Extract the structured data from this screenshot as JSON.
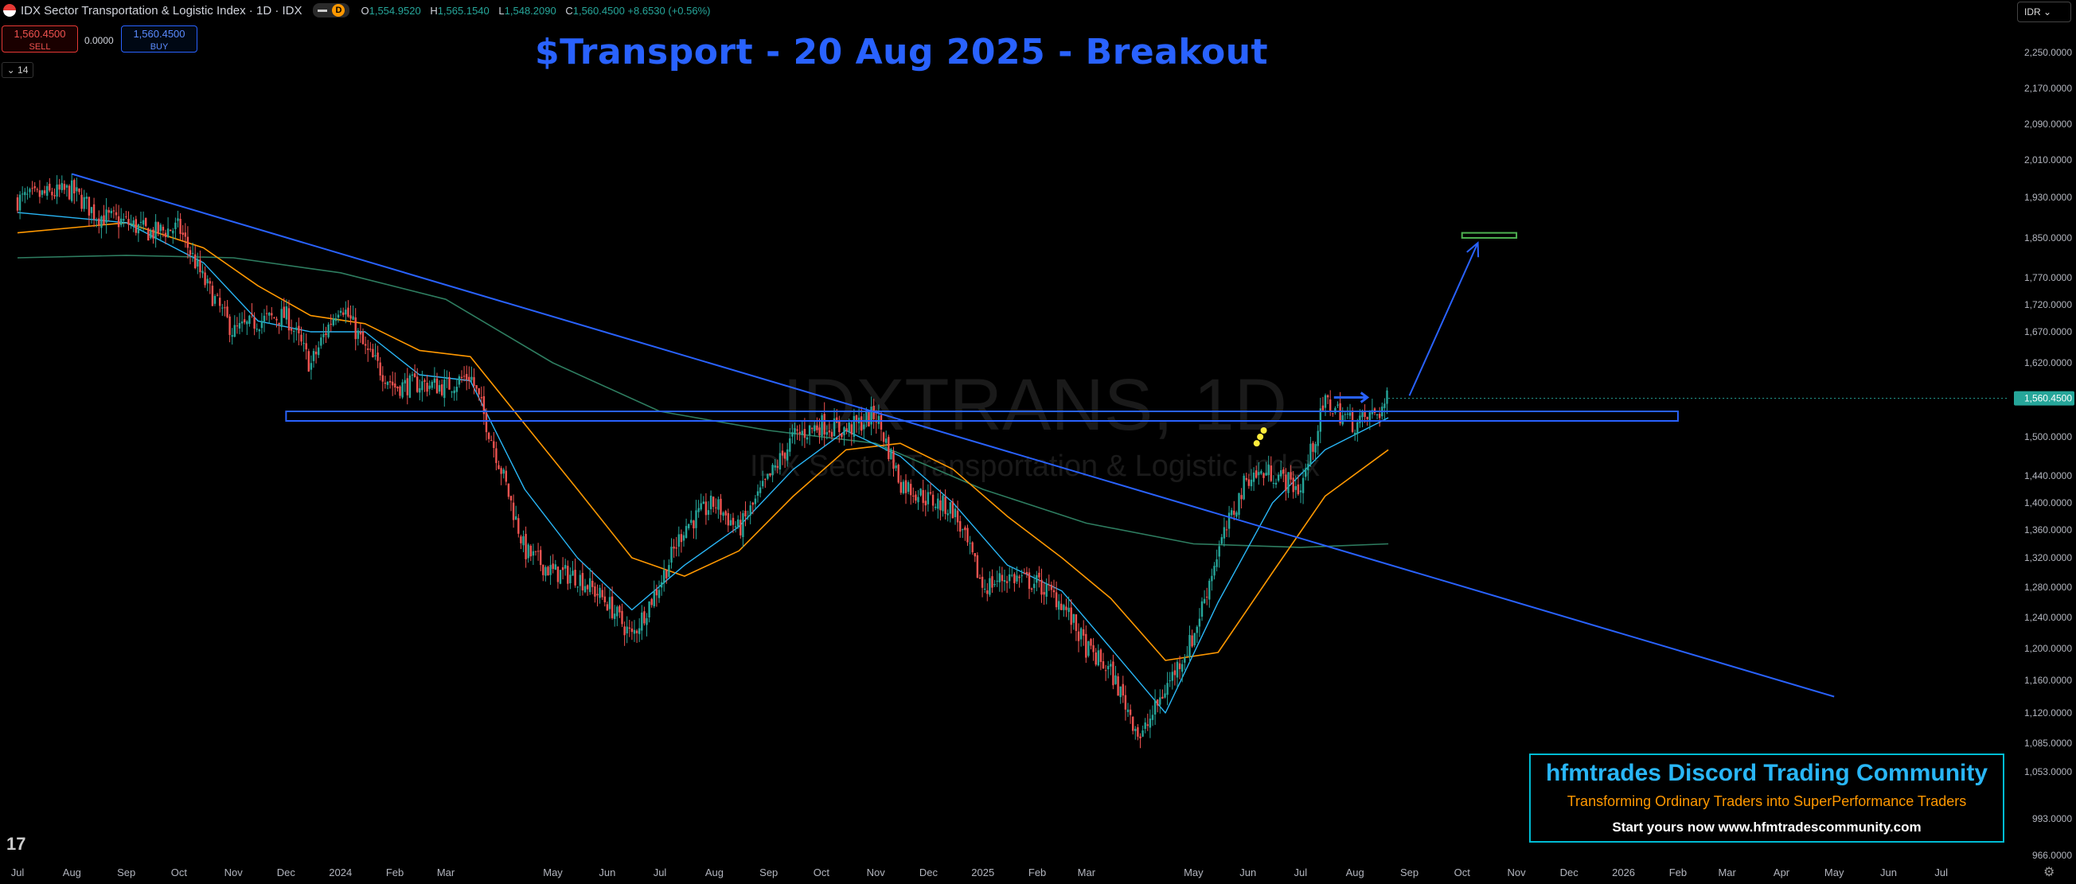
{
  "header": {
    "symbol_title": "IDX Sector Transportation & Logistic Index · 1D · IDX",
    "interval_badge": "D",
    "ohlc": [
      {
        "k": "O",
        "v": "1,554.9520"
      },
      {
        "k": "H",
        "v": "1,565.1540"
      },
      {
        "k": "L",
        "v": "1,548.2090"
      },
      {
        "k": "C",
        "v": "1,560.4500 +8.6530 (+0.56%)"
      }
    ]
  },
  "trade": {
    "sell_price": "1,560.4500",
    "sell_label": "SELL",
    "spread": "0.0000",
    "buy_price": "1,560.4500",
    "buy_label": "BUY"
  },
  "indicator_count": "14",
  "currency": "IDR",
  "annotation_title": "$Transport - 20 Aug 2025 - Breakout",
  "promo": {
    "line1": "hfmtrades Discord Trading Community",
    "line2": "Transforming Ordinary Traders into SuperPerformance Traders",
    "line3": "Start yours now www.hfmtradescommunity.com"
  },
  "colors": {
    "up": "#26a69a",
    "down": "#ef5350",
    "trendline": "#2962ff",
    "ema_fast": "#29b6f6",
    "ema_mid": "#ff9800",
    "ema_slow": "#2e7d60",
    "last_price": "#26a69a"
  },
  "chart_data": {
    "type": "candlestick",
    "watermark_symbol": "IDXTRANS, 1D",
    "watermark_name": "IDX Sector Transportation & Logistic Index",
    "y_ticks": [
      2250,
      2170,
      2090,
      2010,
      1930,
      1850,
      1770,
      1720,
      1670,
      1620,
      1560,
      1500,
      1440,
      1400,
      1360,
      1320,
      1280,
      1240,
      1200,
      1160,
      1120,
      1085,
      1053,
      993,
      966
    ],
    "y_tick_labels": [
      "2,250.0000",
      "2,170.0000",
      "2,090.0000",
      "2,010.0000",
      "1,930.0000",
      "1,850.0000",
      "1,770.0000",
      "1,720.0000",
      "1,670.0000",
      "1,620.0000",
      "1,560.0000",
      "1,500.0000",
      "1,440.0000",
      "1,400.0000",
      "1,360.0000",
      "1,320.0000",
      "1,280.0000",
      "1,240.0000",
      "1,200.0000",
      "1,160.0000",
      "1,120.0000",
      "1,085.0000",
      "1,053.0000",
      "993.0000",
      "966.0000"
    ],
    "last_price": 1560.45,
    "last_price_label": "1,560.4500",
    "x_tick_labels": [
      "Jul",
      "Aug",
      "Sep",
      "Oct",
      "Nov",
      "Dec",
      "2024",
      "Feb",
      "Mar",
      "May",
      "Jun",
      "Jul",
      "Aug",
      "Sep",
      "Oct",
      "Nov",
      "Dec",
      "2025",
      "Feb",
      "Mar",
      "May",
      "Jun",
      "Jul",
      "Aug",
      "Sep",
      "Oct",
      "Nov",
      "Dec",
      "2026",
      "Feb",
      "Mar",
      "Apr",
      "May",
      "Jun",
      "Jul"
    ],
    "x_tick_dates": [
      "2023-07",
      "2023-08",
      "2023-09",
      "2023-10",
      "2023-11",
      "2023-12",
      "2024-01",
      "2024-02",
      "2024-03",
      "2024-05",
      "2024-06",
      "2024-07",
      "2024-08",
      "2024-09",
      "2024-10",
      "2024-11",
      "2024-12",
      "2025-01",
      "2025-02",
      "2025-03",
      "2025-05",
      "2025-06",
      "2025-07",
      "2025-08",
      "2025-09",
      "2025-10",
      "2025-11",
      "2025-12",
      "2026-01",
      "2026-02",
      "2026-03",
      "2026-04",
      "2026-05",
      "2026-06",
      "2026-07"
    ],
    "price_path": [
      [
        "2023-07-01",
        1925
      ],
      [
        "2023-07-15",
        1935
      ],
      [
        "2023-08-01",
        1945
      ],
      [
        "2023-08-15",
        1895
      ],
      [
        "2023-09-01",
        1880
      ],
      [
        "2023-09-15",
        1860
      ],
      [
        "2023-10-01",
        1870
      ],
      [
        "2023-10-15",
        1765
      ],
      [
        "2023-11-01",
        1670
      ],
      [
        "2023-11-15",
        1690
      ],
      [
        "2023-12-01",
        1700
      ],
      [
        "2023-12-15",
        1615
      ],
      [
        "2024-01-01",
        1725
      ],
      [
        "2024-01-15",
        1640
      ],
      [
        "2024-02-01",
        1580
      ],
      [
        "2024-02-15",
        1585
      ],
      [
        "2024-03-01",
        1580
      ],
      [
        "2024-03-15",
        1600
      ],
      [
        "2024-04-01",
        1455
      ],
      [
        "2024-04-15",
        1330
      ],
      [
        "2024-05-01",
        1300
      ],
      [
        "2024-05-15",
        1295
      ],
      [
        "2024-06-01",
        1260
      ],
      [
        "2024-06-15",
        1215
      ],
      [
        "2024-07-01",
        1285
      ],
      [
        "2024-07-15",
        1365
      ],
      [
        "2024-08-01",
        1400
      ],
      [
        "2024-08-15",
        1360
      ],
      [
        "2024-09-01",
        1435
      ],
      [
        "2024-09-15",
        1500
      ],
      [
        "2024-10-01",
        1520
      ],
      [
        "2024-10-15",
        1510
      ],
      [
        "2024-11-01",
        1535
      ],
      [
        "2024-11-15",
        1430
      ],
      [
        "2024-12-01",
        1405
      ],
      [
        "2024-12-15",
        1390
      ],
      [
        "2025-01-01",
        1280
      ],
      [
        "2025-01-15",
        1295
      ],
      [
        "2025-02-01",
        1285
      ],
      [
        "2025-02-15",
        1260
      ],
      [
        "2025-03-01",
        1200
      ],
      [
        "2025-03-15",
        1170
      ],
      [
        "2025-04-01",
        1090
      ],
      [
        "2025-04-15",
        1150
      ],
      [
        "2025-05-01",
        1215
      ],
      [
        "2025-05-15",
        1330
      ],
      [
        "2025-06-01",
        1440
      ],
      [
        "2025-06-15",
        1445
      ],
      [
        "2025-07-01",
        1420
      ],
      [
        "2025-07-15",
        1555
      ],
      [
        "2025-08-01",
        1520
      ],
      [
        "2025-08-15",
        1540
      ],
      [
        "2025-08-20",
        1560.45
      ]
    ],
    "ema_fast": [
      [
        "2023-07-01",
        1900
      ],
      [
        "2023-09-01",
        1880
      ],
      [
        "2023-10-15",
        1800
      ],
      [
        "2023-11-15",
        1690
      ],
      [
        "2023-12-15",
        1670
      ],
      [
        "2024-01-15",
        1670
      ],
      [
        "2024-02-15",
        1600
      ],
      [
        "2024-03-15",
        1590
      ],
      [
        "2024-04-15",
        1420
      ],
      [
        "2024-05-15",
        1320
      ],
      [
        "2024-06-15",
        1250
      ],
      [
        "2024-07-15",
        1310
      ],
      [
        "2024-08-15",
        1365
      ],
      [
        "2024-09-15",
        1450
      ],
      [
        "2024-10-15",
        1510
      ],
      [
        "2024-11-15",
        1470
      ],
      [
        "2024-12-15",
        1400
      ],
      [
        "2025-01-15",
        1310
      ],
      [
        "2025-02-15",
        1275
      ],
      [
        "2025-03-15",
        1200
      ],
      [
        "2025-04-15",
        1120
      ],
      [
        "2025-05-15",
        1260
      ],
      [
        "2025-06-15",
        1400
      ],
      [
        "2025-07-15",
        1480
      ],
      [
        "2025-08-20",
        1530
      ]
    ],
    "ema_mid": [
      [
        "2023-07-01",
        1860
      ],
      [
        "2023-09-01",
        1880
      ],
      [
        "2023-10-15",
        1830
      ],
      [
        "2023-11-15",
        1755
      ],
      [
        "2023-12-15",
        1700
      ],
      [
        "2024-01-15",
        1685
      ],
      [
        "2024-02-15",
        1640
      ],
      [
        "2024-03-15",
        1630
      ],
      [
        "2024-04-15",
        1520
      ],
      [
        "2024-05-15",
        1420
      ],
      [
        "2024-06-15",
        1320
      ],
      [
        "2024-07-15",
        1295
      ],
      [
        "2024-08-15",
        1330
      ],
      [
        "2024-09-15",
        1410
      ],
      [
        "2024-10-15",
        1480
      ],
      [
        "2024-11-15",
        1490
      ],
      [
        "2024-12-15",
        1450
      ],
      [
        "2025-01-15",
        1380
      ],
      [
        "2025-02-15",
        1320
      ],
      [
        "2025-03-15",
        1265
      ],
      [
        "2025-04-15",
        1185
      ],
      [
        "2025-05-15",
        1195
      ],
      [
        "2025-06-15",
        1300
      ],
      [
        "2025-07-15",
        1410
      ],
      [
        "2025-08-20",
        1480
      ]
    ],
    "ema_slow": [
      [
        "2023-07-01",
        1810
      ],
      [
        "2023-09-01",
        1815
      ],
      [
        "2023-11-01",
        1810
      ],
      [
        "2024-01-01",
        1780
      ],
      [
        "2024-03-01",
        1730
      ],
      [
        "2024-05-01",
        1620
      ],
      [
        "2024-07-01",
        1540
      ],
      [
        "2024-09-01",
        1510
      ],
      [
        "2024-11-01",
        1490
      ],
      [
        "2025-01-01",
        1420
      ],
      [
        "2025-03-01",
        1370
      ],
      [
        "2025-05-01",
        1340
      ],
      [
        "2025-07-01",
        1335
      ],
      [
        "2025-08-20",
        1340
      ]
    ],
    "drawings": {
      "trendline": [
        [
          "2023-08-01",
          1980
        ],
        [
          "2026-05-01",
          1140
        ]
      ],
      "resistance_zone": {
        "from": "2023-12-01",
        "to": "2026-02-01",
        "top": 1540,
        "bottom": 1525
      },
      "projection_arrow": [
        [
          "2025-09-01",
          1565
        ],
        [
          "2025-10-10",
          1840
        ]
      ],
      "target_box": {
        "from": "2025-10-01",
        "to": "2025-11-01",
        "top": 1860,
        "bottom": 1850
      },
      "small_arrow": [
        [
          "2025-07-20",
          1562
        ],
        [
          "2025-08-08",
          1562
        ]
      ],
      "dots": [
        [
          "2025-06-10",
          1510
        ],
        [
          "2025-06-08",
          1500
        ],
        [
          "2025-06-06",
          1490
        ]
      ]
    }
  }
}
